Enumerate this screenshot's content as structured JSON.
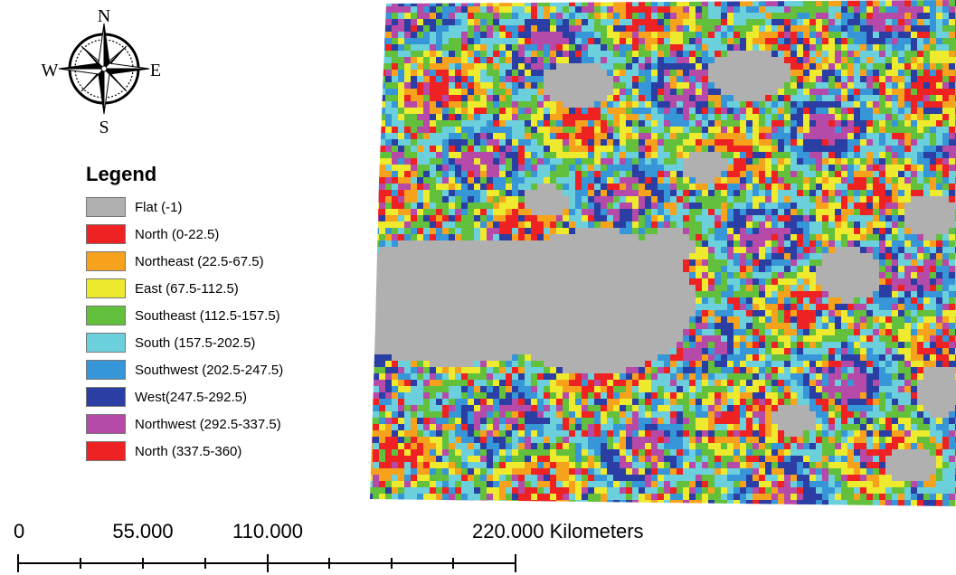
{
  "compass": {
    "n": "N",
    "s": "S",
    "e": "E",
    "w": "W"
  },
  "legend": {
    "title": "Legend",
    "items": [
      {
        "label": "Flat (-1)",
        "color": "#b0b0b0"
      },
      {
        "label": "North (0-22.5)",
        "color": "#ee2222"
      },
      {
        "label": "Northeast (22.5-67.5)",
        "color": "#f7a21c"
      },
      {
        "label": "East (67.5-112.5)",
        "color": "#eeea2e"
      },
      {
        "label": "Southeast (112.5-157.5)",
        "color": "#62c03c"
      },
      {
        "label": "South (157.5-202.5)",
        "color": "#6cd0dc"
      },
      {
        "label": "Southwest (202.5-247.5)",
        "color": "#3796d8"
      },
      {
        "label": "West(247.5-292.5)",
        "color": "#2a3ea3"
      },
      {
        "label": "Northwest (292.5-337.5)",
        "color": "#b64aa8"
      },
      {
        "label": "North (337.5-360)",
        "color": "#ee2222"
      }
    ]
  },
  "scale": {
    "labels": [
      "0",
      "55.000",
      "110.000",
      "220.000 Kilometers"
    ]
  }
}
